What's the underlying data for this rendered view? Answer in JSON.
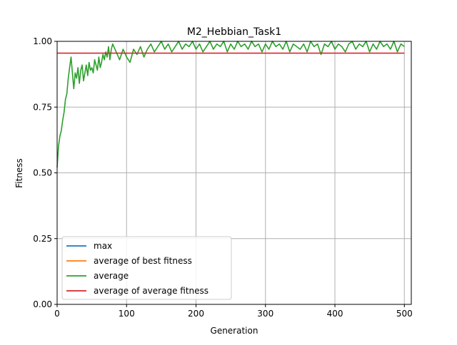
{
  "chart_data": {
    "type": "line",
    "title": "M2_Hebbian_Task1",
    "xlabel": "Generation",
    "ylabel": "Fitness",
    "xlim": [
      0,
      510
    ],
    "ylim": [
      0.0,
      1.0
    ],
    "xticks": [
      0,
      100,
      200,
      300,
      400,
      500
    ],
    "xtick_labels": [
      "0",
      "100",
      "200",
      "300",
      "400",
      "500"
    ],
    "yticks": [
      0.0,
      0.25,
      0.5,
      0.75,
      1.0
    ],
    "ytick_labels": [
      "0.00",
      "0.25",
      "0.50",
      "0.75",
      "1.00"
    ],
    "grid": true,
    "legend_position": "lower-left",
    "series": [
      {
        "name": "max",
        "color": "#1f77b4",
        "x": [],
        "values": []
      },
      {
        "name": "average of best fitness",
        "color": "#ff7f0e",
        "x": [],
        "values": []
      },
      {
        "name": "average",
        "color": "#2ca02c",
        "x": [
          0,
          2,
          4,
          6,
          8,
          10,
          12,
          14,
          16,
          18,
          20,
          22,
          24,
          26,
          28,
          30,
          32,
          34,
          36,
          38,
          40,
          42,
          44,
          46,
          48,
          50,
          52,
          54,
          56,
          58,
          60,
          62,
          64,
          66,
          68,
          70,
          72,
          74,
          76,
          78,
          80,
          85,
          90,
          95,
          100,
          105,
          110,
          115,
          120,
          125,
          130,
          135,
          140,
          145,
          150,
          155,
          160,
          165,
          170,
          175,
          180,
          185,
          190,
          195,
          200,
          205,
          210,
          215,
          220,
          225,
          230,
          235,
          240,
          245,
          250,
          255,
          260,
          265,
          270,
          275,
          280,
          285,
          290,
          295,
          300,
          305,
          310,
          315,
          320,
          325,
          330,
          335,
          340,
          345,
          350,
          355,
          360,
          365,
          370,
          375,
          380,
          385,
          390,
          395,
          400,
          405,
          410,
          415,
          420,
          425,
          430,
          435,
          440,
          445,
          450,
          455,
          460,
          465,
          470,
          475,
          480,
          485,
          490,
          495,
          500
        ],
        "values": [
          0.52,
          0.6,
          0.64,
          0.66,
          0.7,
          0.73,
          0.78,
          0.8,
          0.86,
          0.9,
          0.94,
          0.88,
          0.82,
          0.88,
          0.86,
          0.9,
          0.84,
          0.89,
          0.91,
          0.85,
          0.88,
          0.91,
          0.87,
          0.92,
          0.89,
          0.9,
          0.88,
          0.93,
          0.91,
          0.89,
          0.94,
          0.9,
          0.92,
          0.95,
          0.93,
          0.96,
          0.94,
          0.98,
          0.93,
          0.97,
          0.99,
          0.96,
          0.93,
          0.97,
          0.94,
          0.92,
          0.97,
          0.95,
          0.98,
          0.94,
          0.97,
          0.99,
          0.96,
          0.98,
          1.0,
          0.97,
          0.99,
          0.96,
          0.98,
          1.0,
          0.97,
          0.99,
          0.98,
          1.0,
          0.97,
          0.99,
          0.96,
          0.98,
          1.0,
          0.97,
          0.99,
          0.98,
          1.0,
          0.96,
          0.99,
          0.97,
          1.0,
          0.98,
          0.99,
          0.97,
          1.0,
          0.98,
          0.99,
          0.96,
          0.99,
          0.97,
          1.0,
          0.98,
          0.99,
          0.97,
          1.0,
          0.96,
          0.99,
          0.98,
          0.97,
          0.99,
          0.96,
          1.0,
          0.98,
          0.99,
          0.95,
          0.99,
          0.98,
          1.0,
          0.97,
          0.99,
          0.98,
          0.96,
          0.99,
          1.0,
          0.97,
          0.99,
          0.98,
          1.0,
          0.96,
          0.99,
          0.97,
          1.0,
          0.98,
          0.99,
          0.97,
          1.0,
          0.96,
          0.99,
          0.98
        ]
      },
      {
        "name": "average of average fitness",
        "color": "#d62728",
        "x": [
          0,
          500
        ],
        "values": [
          0.955,
          0.955
        ]
      }
    ]
  }
}
